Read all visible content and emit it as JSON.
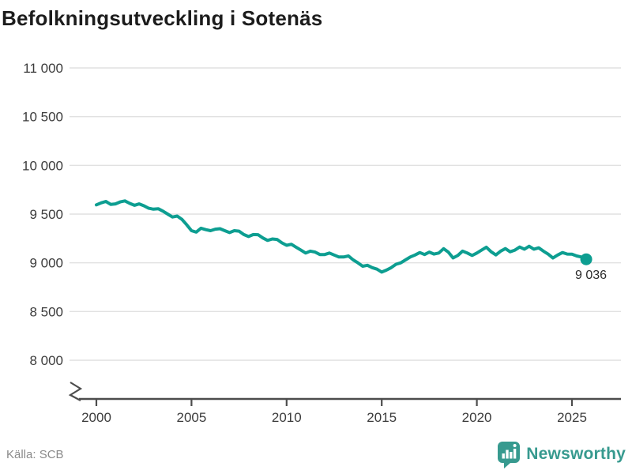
{
  "header": {
    "title": "Befolkningsutveckling i Sotenäs"
  },
  "footer": {
    "source_label": "Källa: SCB",
    "brand_name": "Newsworthy"
  },
  "colors": {
    "line": "#0d9e91",
    "grid": "#e1e1e1",
    "axis": "#4d4d4d",
    "tick_text": "#3c3c3c",
    "brand": "#379a8f"
  },
  "chart_data": {
    "type": "line",
    "title": "Befolkningsutveckling i Sotenäs",
    "series_name": "Befolkning i Sotenäs",
    "xlabel": "",
    "ylabel": "",
    "xlim": [
      1999.5,
      2026.5
    ],
    "ylim": [
      8000,
      11000
    ],
    "axis_break": true,
    "grid": "horizontal",
    "legend": "none",
    "end_label": "9 036",
    "end_value": 9036,
    "yticks": [
      {
        "value": 11000,
        "label": "11 000"
      },
      {
        "value": 10500,
        "label": "10 500"
      },
      {
        "value": 10000,
        "label": "10 000"
      },
      {
        "value": 9500,
        "label": "9 500"
      },
      {
        "value": 9000,
        "label": "9 000"
      },
      {
        "value": 8500,
        "label": "8 500"
      },
      {
        "value": 8000,
        "label": "8 000"
      }
    ],
    "xticks": [
      {
        "value": 2000,
        "label": "2000"
      },
      {
        "value": 2005,
        "label": "2005"
      },
      {
        "value": 2010,
        "label": "2010"
      },
      {
        "value": 2015,
        "label": "2015"
      },
      {
        "value": 2020,
        "label": "2020"
      },
      {
        "value": 2025,
        "label": "2025"
      }
    ],
    "x": [
      2000.0,
      2000.25,
      2000.5,
      2000.75,
      2001.0,
      2001.25,
      2001.5,
      2001.75,
      2002.0,
      2002.25,
      2002.5,
      2002.75,
      2003.0,
      2003.25,
      2003.5,
      2003.75,
      2004.0,
      2004.25,
      2004.5,
      2004.75,
      2005.0,
      2005.25,
      2005.5,
      2005.75,
      2006.0,
      2006.25,
      2006.5,
      2006.75,
      2007.0,
      2007.25,
      2007.5,
      2007.75,
      2008.0,
      2008.25,
      2008.5,
      2008.75,
      2009.0,
      2009.25,
      2009.5,
      2009.75,
      2010.0,
      2010.25,
      2010.5,
      2010.75,
      2011.0,
      2011.25,
      2011.5,
      2011.75,
      2012.0,
      2012.25,
      2012.5,
      2012.75,
      2013.0,
      2013.25,
      2013.5,
      2013.75,
      2014.0,
      2014.25,
      2014.5,
      2014.75,
      2015.0,
      2015.25,
      2015.5,
      2015.75,
      2016.0,
      2016.25,
      2016.5,
      2016.75,
      2017.0,
      2017.25,
      2017.5,
      2017.75,
      2018.0,
      2018.25,
      2018.5,
      2018.75,
      2019.0,
      2019.25,
      2019.5,
      2019.75,
      2020.0,
      2020.25,
      2020.5,
      2020.75,
      2021.0,
      2021.25,
      2021.5,
      2021.75,
      2022.0,
      2022.25,
      2022.5,
      2022.75,
      2023.0,
      2023.25,
      2023.5,
      2023.75,
      2024.0,
      2024.25,
      2024.5,
      2024.75,
      2025.0,
      2025.25,
      2025.5,
      2025.75
    ],
    "values": [
      9595,
      9615,
      9630,
      9600,
      9605,
      9625,
      9635,
      9610,
      9590,
      9605,
      9585,
      9560,
      9550,
      9555,
      9530,
      9500,
      9470,
      9480,
      9445,
      9390,
      9330,
      9315,
      9355,
      9340,
      9330,
      9345,
      9350,
      9330,
      9310,
      9330,
      9325,
      9290,
      9270,
      9290,
      9288,
      9255,
      9230,
      9245,
      9240,
      9205,
      9180,
      9190,
      9160,
      9130,
      9100,
      9120,
      9110,
      9085,
      9085,
      9100,
      9080,
      9060,
      9060,
      9070,
      9030,
      9000,
      8965,
      8975,
      8950,
      8935,
      8905,
      8925,
      8950,
      8985,
      9000,
      9030,
      9060,
      9080,
      9105,
      9085,
      9110,
      9090,
      9100,
      9145,
      9110,
      9050,
      9075,
      9120,
      9100,
      9075,
      9100,
      9130,
      9160,
      9113,
      9081,
      9120,
      9146,
      9113,
      9130,
      9162,
      9140,
      9170,
      9140,
      9154,
      9120,
      9089,
      9049,
      9080,
      9105,
      9090,
      9088,
      9070,
      9060,
      9036
    ]
  }
}
